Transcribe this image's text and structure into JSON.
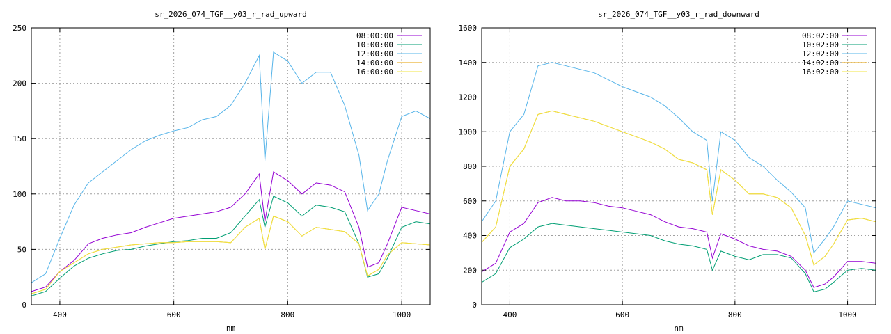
{
  "chart_data": [
    {
      "type": "line",
      "title": "sr_2026_074_TGF__y03_r_rad_upward",
      "xlabel": "nm",
      "ylabel": "",
      "xlim": [
        350,
        1050
      ],
      "ylim": [
        0,
        250
      ],
      "xticks": [
        400,
        600,
        800,
        1000
      ],
      "yticks": [
        0,
        50,
        100,
        150,
        200,
        250
      ],
      "grid": true,
      "legend": "top-right",
      "x": [
        350,
        375,
        400,
        425,
        450,
        475,
        500,
        525,
        550,
        575,
        600,
        625,
        650,
        675,
        700,
        725,
        750,
        760,
        775,
        800,
        825,
        850,
        875,
        900,
        925,
        940,
        960,
        975,
        1000,
        1025,
        1050
      ],
      "series": [
        {
          "name": "08:00:00",
          "color": "#9400d3",
          "values": [
            12,
            16,
            30,
            40,
            55,
            60,
            63,
            65,
            70,
            74,
            78,
            80,
            82,
            84,
            88,
            100,
            118,
            75,
            120,
            112,
            100,
            110,
            108,
            102,
            70,
            34,
            38,
            55,
            88,
            85,
            82
          ]
        },
        {
          "name": "10:00:00",
          "color": "#009e73",
          "values": [
            8,
            12,
            24,
            35,
            42,
            46,
            49,
            50,
            53,
            55,
            57,
            58,
            60,
            60,
            65,
            80,
            95,
            70,
            98,
            92,
            80,
            90,
            88,
            84,
            55,
            25,
            28,
            42,
            70,
            75,
            73
          ]
        },
        {
          "name": "12:00:00",
          "color": "#56b4e9",
          "values": [
            20,
            28,
            60,
            90,
            110,
            120,
            130,
            140,
            148,
            153,
            157,
            160,
            167,
            170,
            180,
            200,
            225,
            130,
            228,
            220,
            200,
            210,
            210,
            180,
            135,
            85,
            100,
            130,
            170,
            175,
            168
          ]
        },
        {
          "name": "14:00:00",
          "color": "#e69f00",
          "values": [
            10,
            14,
            30,
            38,
            46,
            50,
            52,
            54,
            55,
            56,
            56,
            57,
            57,
            57,
            56,
            70,
            78,
            50,
            80,
            75,
            62,
            70,
            68,
            66,
            55,
            26,
            32,
            45,
            56,
            55,
            54
          ]
        },
        {
          "name": "16:00:00",
          "color": "#f0e442",
          "values": [
            10,
            14,
            30,
            38,
            46,
            50,
            52,
            54,
            55,
            56,
            56,
            57,
            57,
            57,
            56,
            70,
            78,
            50,
            80,
            75,
            62,
            70,
            68,
            66,
            55,
            26,
            32,
            45,
            56,
            55,
            54
          ]
        }
      ]
    },
    {
      "type": "line",
      "title": "sr_2026_074_TGF__y03_r_rad_downward",
      "xlabel": "nm",
      "ylabel": "",
      "xlim": [
        350,
        1050
      ],
      "ylim": [
        0,
        1600
      ],
      "xticks": [
        400,
        600,
        800,
        1000
      ],
      "yticks": [
        0,
        200,
        400,
        600,
        800,
        1000,
        1200,
        1400,
        1600
      ],
      "grid": true,
      "legend": "top-right",
      "x": [
        350,
        375,
        400,
        425,
        450,
        475,
        500,
        525,
        550,
        575,
        600,
        625,
        650,
        675,
        700,
        725,
        750,
        760,
        775,
        800,
        825,
        850,
        875,
        900,
        925,
        940,
        960,
        975,
        1000,
        1025,
        1050
      ],
      "series": [
        {
          "name": "08:02:00",
          "color": "#9400d3",
          "values": [
            190,
            240,
            420,
            470,
            590,
            620,
            600,
            600,
            590,
            570,
            560,
            540,
            520,
            480,
            450,
            440,
            420,
            270,
            410,
            380,
            340,
            320,
            310,
            280,
            200,
            100,
            120,
            160,
            250,
            250,
            240
          ]
        },
        {
          "name": "10:02:00",
          "color": "#009e73",
          "values": [
            130,
            180,
            330,
            380,
            450,
            470,
            460,
            450,
            440,
            430,
            420,
            410,
            400,
            370,
            350,
            340,
            320,
            200,
            310,
            280,
            260,
            290,
            290,
            270,
            180,
            75,
            90,
            130,
            200,
            210,
            200
          ]
        },
        {
          "name": "12:02:00",
          "color": "#56b4e9",
          "values": [
            480,
            600,
            1000,
            1100,
            1380,
            1400,
            1380,
            1360,
            1340,
            1300,
            1260,
            1230,
            1200,
            1150,
            1080,
            1000,
            950,
            600,
            1000,
            950,
            850,
            800,
            720,
            650,
            560,
            300,
            380,
            450,
            600,
            580,
            560
          ]
        },
        {
          "name": "14:02:00",
          "color": "#e69f00",
          "values": [
            360,
            450,
            800,
            900,
            1100,
            1120,
            1100,
            1080,
            1060,
            1030,
            1000,
            970,
            940,
            900,
            840,
            820,
            780,
            520,
            780,
            720,
            640,
            640,
            620,
            560,
            400,
            230,
            280,
            350,
            490,
            500,
            480
          ]
        },
        {
          "name": "16:02:00",
          "color": "#f0e442",
          "values": [
            360,
            450,
            800,
            900,
            1100,
            1120,
            1100,
            1080,
            1060,
            1030,
            1000,
            970,
            940,
            900,
            840,
            820,
            780,
            520,
            780,
            720,
            640,
            640,
            620,
            560,
            400,
            230,
            280,
            350,
            490,
            500,
            480
          ]
        }
      ]
    }
  ]
}
